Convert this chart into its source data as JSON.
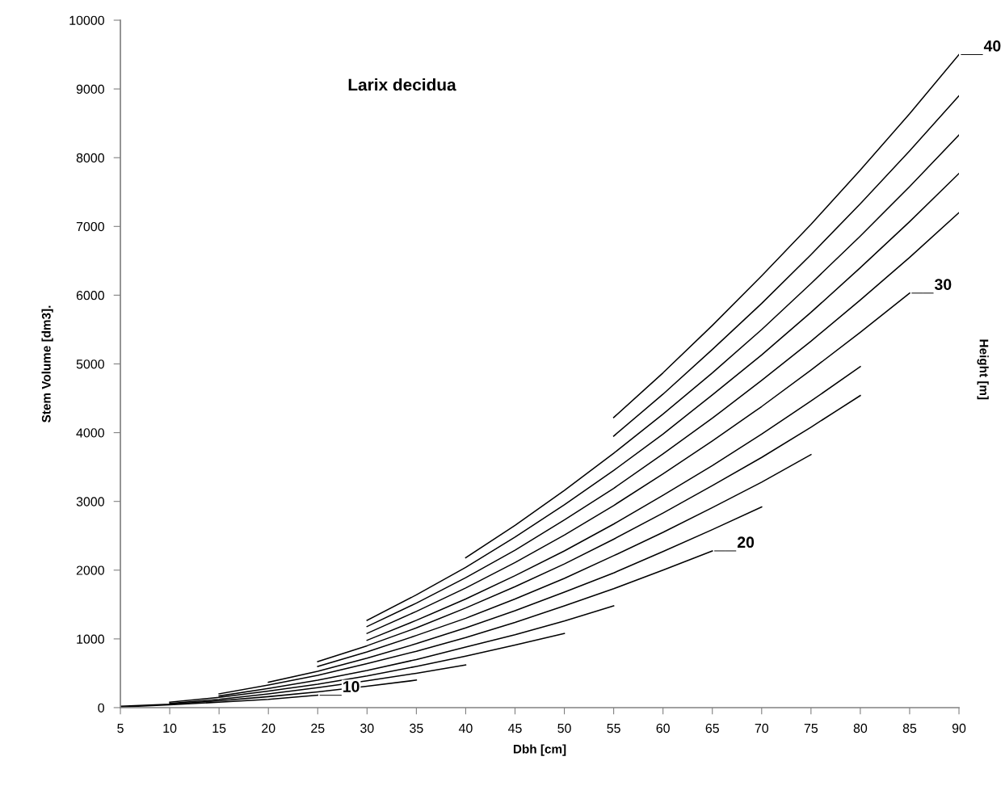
{
  "chart_data": {
    "type": "line",
    "title": "Larix decidua",
    "xlabel": "Dbh [cm]",
    "ylabel": "Stem Volume [dm3].",
    "y2label": "Height [m]",
    "xlim": [
      5,
      90
    ],
    "xticks": [
      5,
      10,
      15,
      20,
      25,
      30,
      35,
      40,
      45,
      50,
      55,
      60,
      65,
      70,
      75,
      80,
      85,
      90
    ],
    "ylim": [
      0,
      10000
    ],
    "yticks": [
      0,
      1000,
      2000,
      3000,
      4000,
      5000,
      6000,
      7000,
      8000,
      9000,
      10000
    ],
    "grid": false,
    "legend": false,
    "marker": "none",
    "line_style": "solid",
    "series": [
      {
        "color": "#000000",
        "x": [
          55,
          60,
          65,
          70,
          75,
          80,
          85,
          90
        ],
        "values": [
          4220,
          4870,
          5560,
          6280,
          7030,
          7820,
          8640,
          9500
        ]
      },
      {
        "color": "#000000",
        "x": [
          55,
          60,
          65,
          70,
          75,
          80,
          85,
          90
        ],
        "values": [
          3950,
          4560,
          5210,
          5880,
          6590,
          7330,
          8100,
          8900
        ]
      },
      {
        "color": "#000000",
        "x": [
          40,
          45,
          50,
          55,
          60,
          65,
          70,
          75,
          80,
          85,
          90
        ],
        "values": [
          2180,
          2650,
          3160,
          3700,
          4270,
          4870,
          5500,
          6170,
          6860,
          7580,
          8330
        ]
      },
      {
        "color": "#000000",
        "x": [
          30,
          35,
          40,
          45,
          50,
          55,
          60,
          65,
          70,
          75,
          80,
          85,
          90
        ],
        "values": [
          1270,
          1640,
          2040,
          2480,
          2950,
          3450,
          3980,
          4550,
          5130,
          5750,
          6400,
          7070,
          7770
        ]
      },
      {
        "color": "#000000",
        "x": [
          30,
          35,
          40,
          45,
          50,
          55,
          60,
          65,
          70,
          75,
          80,
          85,
          90
        ],
        "values": [
          1180,
          1520,
          1890,
          2290,
          2730,
          3190,
          3690,
          4210,
          4760,
          5330,
          5930,
          6550,
          7200
        ]
      },
      {
        "color": "#000000",
        "x": [
          30,
          35,
          40,
          45,
          50,
          55,
          60,
          65,
          70,
          75,
          80,
          85
        ],
        "values": [
          1080,
          1400,
          1740,
          2110,
          2510,
          2940,
          3400,
          3880,
          4380,
          4910,
          5460,
          6030
        ]
      },
      {
        "color": "#000000",
        "x": [
          30,
          35,
          40,
          45,
          50,
          55,
          60,
          65,
          70,
          75,
          80
        ],
        "values": [
          980,
          1270,
          1580,
          1920,
          2280,
          2670,
          3090,
          3520,
          3980,
          4460,
          4960
        ]
      },
      {
        "color": "#000000",
        "x": [
          25,
          30,
          35,
          40,
          45,
          50,
          55,
          60,
          65,
          70,
          75,
          80
        ],
        "values": [
          670,
          900,
          1160,
          1450,
          1760,
          2090,
          2450,
          2830,
          3230,
          3640,
          4080,
          4540
        ]
      },
      {
        "color": "#000000",
        "x": [
          25,
          30,
          35,
          40,
          45,
          50,
          55,
          60,
          65,
          70,
          75
        ],
        "values": [
          600,
          810,
          1050,
          1300,
          1580,
          1880,
          2210,
          2550,
          2910,
          3280,
          3680
        ]
      },
      {
        "color": "#000000",
        "x": [
          20,
          25,
          30,
          35,
          40,
          45,
          50,
          55,
          60,
          65,
          70
        ],
        "values": [
          370,
          530,
          720,
          930,
          1160,
          1410,
          1680,
          1960,
          2270,
          2590,
          2920
        ]
      },
      {
        "color": "#000000",
        "x": [
          15,
          20,
          25,
          30,
          35,
          40,
          45,
          50,
          55,
          60,
          65
        ],
        "values": [
          200,
          330,
          470,
          640,
          820,
          1020,
          1240,
          1480,
          1730,
          2000,
          2280
        ]
      },
      {
        "color": "#000000",
        "x": [
          15,
          20,
          25,
          30,
          35,
          40,
          45,
          50,
          55
        ],
        "values": [
          170,
          280,
          400,
          540,
          700,
          880,
          1060,
          1260,
          1480
        ]
      },
      {
        "color": "#000000",
        "x": [
          10,
          15,
          20,
          25,
          30,
          35,
          40,
          45,
          50
        ],
        "values": [
          80,
          150,
          240,
          340,
          460,
          600,
          750,
          910,
          1080
        ]
      },
      {
        "color": "#000000",
        "x": [
          10,
          15,
          20,
          25,
          30,
          35,
          40
        ],
        "values": [
          60,
          120,
          200,
          290,
          390,
          500,
          620
        ]
      },
      {
        "color": "#000000",
        "x": [
          5,
          10,
          15,
          20,
          25,
          30,
          35
        ],
        "values": [
          20,
          50,
          100,
          160,
          230,
          310,
          400
        ]
      },
      {
        "color": "#000000",
        "x": [
          5,
          10,
          15,
          20,
          25
        ],
        "values": [
          10,
          40,
          80,
          120,
          180
        ]
      }
    ],
    "annotations": [
      {
        "text": "40",
        "x": 90,
        "y": 9500
      },
      {
        "text": "30",
        "x": 85,
        "y": 6030
      },
      {
        "text": "20",
        "x": 65,
        "y": 2280
      },
      {
        "text": "10",
        "x": 25,
        "y": 180
      }
    ]
  }
}
